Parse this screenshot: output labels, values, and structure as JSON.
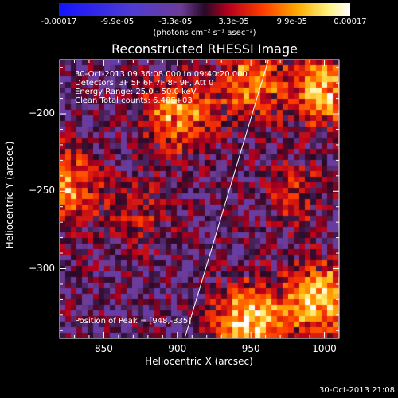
{
  "colorbar": {
    "ticks": [
      "-0.00017",
      "-9.9e-05",
      "-3.3e-05",
      "3.3e-05",
      "9.9e-05",
      "0.00017"
    ],
    "units": "(photons cm⁻² s⁻¹ asec⁻²)",
    "vmin": -0.00017,
    "vmax": 0.00017
  },
  "chart_data": {
    "type": "heatmap",
    "title": "Reconstructed RHESSI Image",
    "xlabel": "Heliocentric X (arcsec)",
    "ylabel": "Heliocentric Y (arcsec)",
    "xlim": [
      820,
      1010
    ],
    "ylim": [
      -345,
      -165
    ],
    "xticks": [
      "850",
      "900",
      "950",
      "1000"
    ],
    "yticks": [
      "-200",
      "-250",
      "-300"
    ],
    "annotations": [
      "30-Oct-2013 09:36:08.000 to 09:40:20.000",
      "Detectors: 3F 5F 6F 7F 8F 9F, Att 0",
      "Energy Range: 25.0 - 50.0 keV",
      "Clean    Total counts: 6.40E+03"
    ],
    "peak_label": "Position of Peak = [948,-335]",
    "peak": [
      948,
      -335
    ],
    "limb_line": [
      [
        905,
        -345
      ],
      [
        962,
        -165
      ]
    ],
    "sources": [
      {
        "x": 900,
        "y": -200,
        "v": 0.00012
      },
      {
        "x": 950,
        "y": -180,
        "v": 0.0001
      },
      {
        "x": 1000,
        "y": -185,
        "v": 0.00013
      },
      {
        "x": 825,
        "y": -245,
        "v": 0.00011
      },
      {
        "x": 948,
        "y": -335,
        "v": 0.00017
      },
      {
        "x": 995,
        "y": -320,
        "v": 0.00015
      },
      {
        "x": 980,
        "y": -250,
        "v": 5e-05
      },
      {
        "x": 875,
        "y": -265,
        "v": 4e-05
      }
    ]
  },
  "timestamp": "30-Oct-2013 21:08"
}
